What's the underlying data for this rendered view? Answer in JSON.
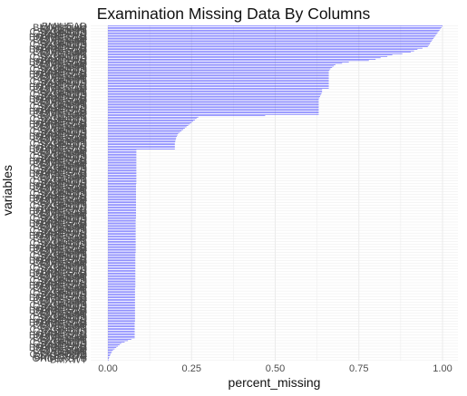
{
  "colors": {
    "bar": "#3333ff",
    "grid": "#ebebeb",
    "text": "#4d4d4d"
  },
  "chart_data": {
    "type": "bar",
    "orientation": "horizontal",
    "title": "Examination Missing Data By Columns",
    "xlabel": "percent_missing",
    "ylabel": "variables",
    "xlim": [
      0,
      1
    ],
    "xticks": [
      "0.00",
      "0.25",
      "0.50",
      "0.75",
      "1.00"
    ],
    "grid": true,
    "legend": "none",
    "visible_labels_top": [
      "BMIHEAD",
      "BMIRECUM",
      "BMDBMIC",
      "BMIWT",
      "CSXCHOOD",
      "CSXLEAOD",
      "BMXHEAD",
      "BPXPULS",
      "BMXRECUM"
    ],
    "visible_labels_bottom": [
      "BMDSTATS",
      "OHDEXSTS",
      "BMXWT"
    ],
    "values": [
      1.0,
      0.997,
      0.994,
      0.991,
      0.988,
      0.985,
      0.982,
      0.979,
      0.976,
      0.973,
      0.97,
      0.967,
      0.964,
      0.962,
      0.959,
      0.956,
      0.94,
      0.925,
      0.915,
      0.905,
      0.88,
      0.85,
      0.835,
      0.815,
      0.8,
      0.78,
      0.72,
      0.7,
      0.68,
      0.675,
      0.67,
      0.665,
      0.662,
      0.66,
      0.66,
      0.66,
      0.66,
      0.66,
      0.66,
      0.66,
      0.66,
      0.66,
      0.66,
      0.66,
      0.66,
      0.66,
      0.64,
      0.64,
      0.64,
      0.638,
      0.636,
      0.634,
      0.632,
      0.63,
      0.63,
      0.63,
      0.63,
      0.63,
      0.63,
      0.63,
      0.63,
      0.63,
      0.63,
      0.63,
      0.63,
      0.47,
      0.27,
      0.265,
      0.26,
      0.255,
      0.25,
      0.245,
      0.24,
      0.235,
      0.23,
      0.225,
      0.22,
      0.215,
      0.21,
      0.208,
      0.206,
      0.204,
      0.203,
      0.202,
      0.201,
      0.2,
      0.2,
      0.2,
      0.2,
      0.2,
      0.085,
      0.085,
      0.085,
      0.085,
      0.085,
      0.085,
      0.085,
      0.085,
      0.085,
      0.085,
      0.085,
      0.085,
      0.085,
      0.085,
      0.085,
      0.085,
      0.085,
      0.085,
      0.085,
      0.085,
      0.085,
      0.085,
      0.085,
      0.085,
      0.085,
      0.084,
      0.084,
      0.084,
      0.084,
      0.084,
      0.084,
      0.084,
      0.084,
      0.084,
      0.084,
      0.084,
      0.084,
      0.084,
      0.084,
      0.084,
      0.084,
      0.084,
      0.084,
      0.084,
      0.084,
      0.084,
      0.084,
      0.084,
      0.084,
      0.084,
      0.083,
      0.083,
      0.083,
      0.083,
      0.083,
      0.083,
      0.083,
      0.083,
      0.083,
      0.083,
      0.083,
      0.083,
      0.083,
      0.083,
      0.083,
      0.083,
      0.083,
      0.083,
      0.083,
      0.083,
      0.083,
      0.083,
      0.083,
      0.083,
      0.083,
      0.082,
      0.082,
      0.082,
      0.082,
      0.082,
      0.082,
      0.082,
      0.082,
      0.082,
      0.082,
      0.082,
      0.082,
      0.082,
      0.082,
      0.082,
      0.082,
      0.082,
      0.082,
      0.082,
      0.082,
      0.082,
      0.082,
      0.082,
      0.082,
      0.082,
      0.081,
      0.081,
      0.081,
      0.081,
      0.081,
      0.081,
      0.081,
      0.081,
      0.081,
      0.081,
      0.081,
      0.081,
      0.081,
      0.081,
      0.081,
      0.081,
      0.081,
      0.081,
      0.081,
      0.081,
      0.081,
      0.081,
      0.081,
      0.081,
      0.081,
      0.08,
      0.08,
      0.08,
      0.08,
      0.08,
      0.08,
      0.08,
      0.08,
      0.08,
      0.08,
      0.08,
      0.08,
      0.07,
      0.06,
      0.05,
      0.04,
      0.035,
      0.03,
      0.025,
      0.02,
      0.015,
      0.012,
      0.01,
      0.008,
      0.006,
      0.004,
      0.003,
      0.002
    ]
  }
}
